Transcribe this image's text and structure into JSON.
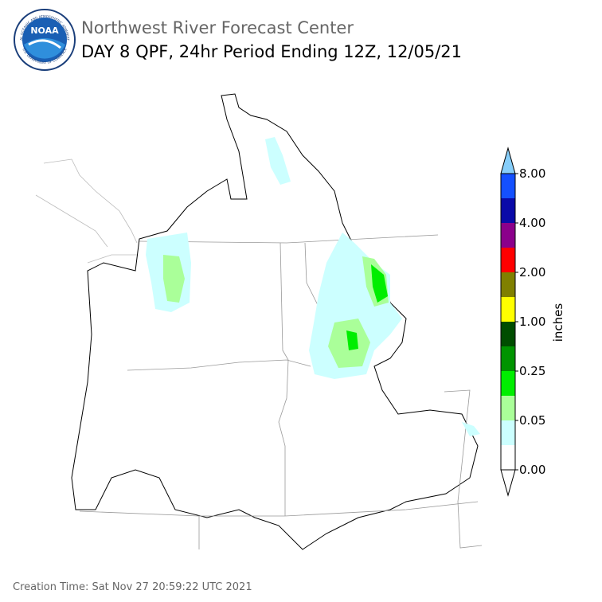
{
  "header": {
    "agency": "Northwest River Forecast Center",
    "title": "DAY 8 QPF, 24hr Period Ending 12Z, 12/05/21"
  },
  "logo": {
    "text": "NOAA",
    "ring_top": "NATIONAL OCEANIC AND ATMOSPHERIC ADMINISTRATION",
    "ring_bottom": "U.S. DEPARTMENT OF COMMERCE"
  },
  "legend": {
    "label": "inches",
    "ticks": [
      "8.00",
      "4.00",
      "2.00",
      "1.00",
      "0.25",
      "0.05",
      "0.00"
    ],
    "over_color": "#87cefa",
    "colors": [
      "#1450ff",
      "#0a0aa8",
      "#8b008b",
      "#ff0000",
      "#808000",
      "#ffff00",
      "#004d00",
      "#009400",
      "#00ee00",
      "#aaff99",
      "#ccffff",
      "#ffffff"
    ],
    "under_color": "#ffffff"
  },
  "footer": "Creation Time: Sat Nov 27 20:59:22 UTC 2021"
}
